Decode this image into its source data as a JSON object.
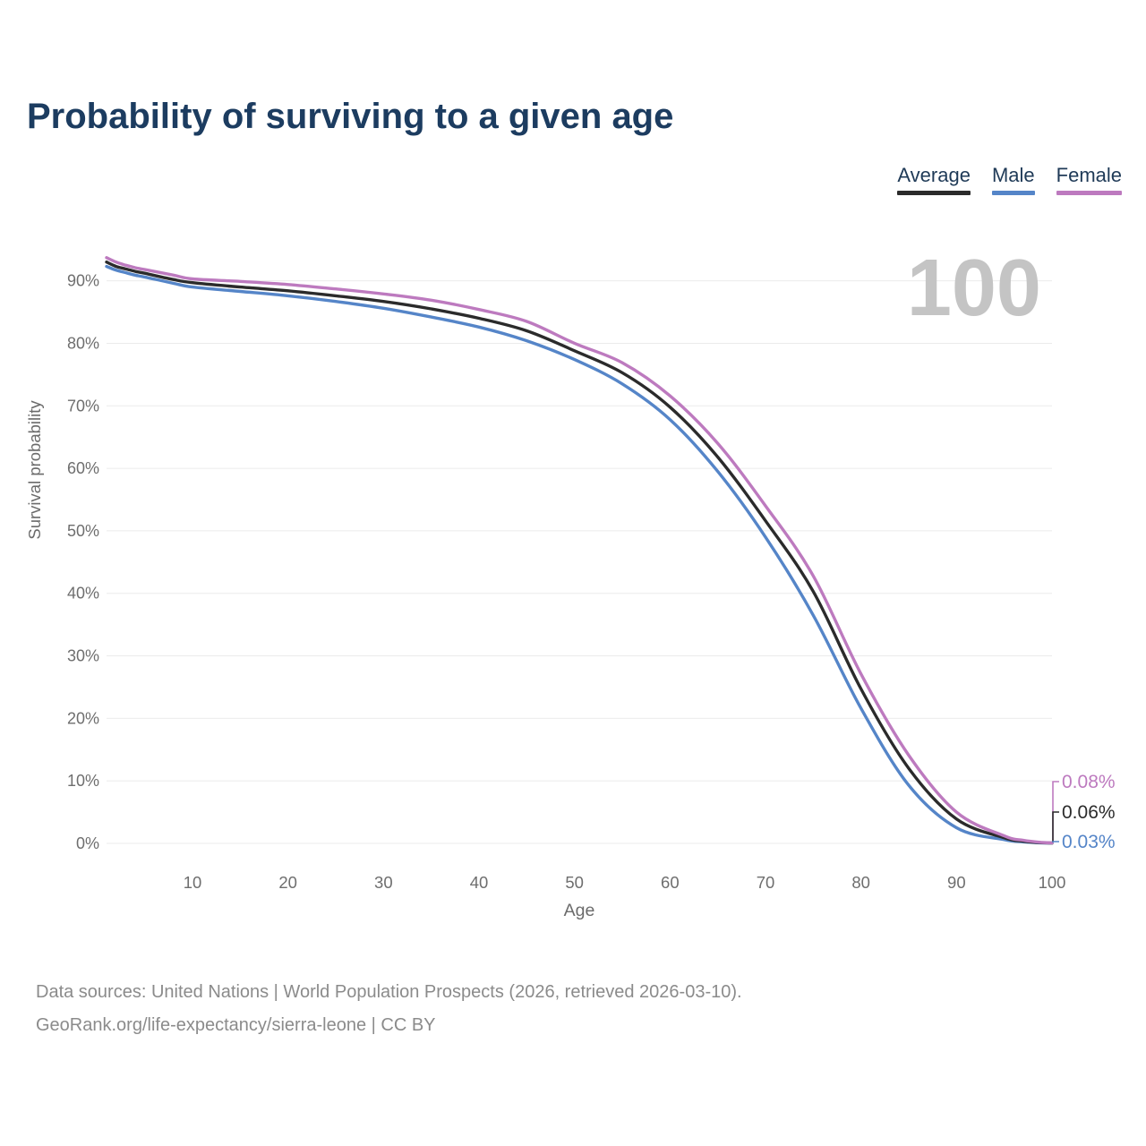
{
  "title": "Probability of surviving to a given age",
  "watermark": "100",
  "legend": {
    "items": [
      {
        "id": "average",
        "label": "Average",
        "color": "#2b2b2b"
      },
      {
        "id": "male",
        "label": "Male",
        "color": "#5585c8"
      },
      {
        "id": "female",
        "label": "Female",
        "color": "#bd7abf"
      }
    ]
  },
  "footer": {
    "line1": "Data sources: United Nations | World Population Prospects (2026, retrieved 2026-03-10).",
    "line2": "GeoRank.org/life-expectancy/sierra-leone | CC BY"
  },
  "chart_data": {
    "type": "line",
    "title": "Probability of surviving to a given age",
    "xlabel": "Age",
    "ylabel": "Survival probability",
    "xlim": [
      1,
      100
    ],
    "ylim": [
      0,
      95
    ],
    "x_ticks": [
      10,
      20,
      30,
      40,
      50,
      60,
      70,
      80,
      90,
      100
    ],
    "y_ticks": [
      0,
      10,
      20,
      30,
      40,
      50,
      60,
      70,
      80,
      90
    ],
    "y_tick_suffix": "%",
    "grid": "horizontal-only",
    "legend_position": "top-right",
    "hover_age_watermark": "100",
    "x": [
      1,
      2,
      3,
      4,
      5,
      8,
      10,
      15,
      20,
      25,
      30,
      35,
      40,
      45,
      50,
      55,
      60,
      65,
      70,
      75,
      80,
      85,
      90,
      95,
      97,
      99,
      100
    ],
    "series": [
      {
        "id": "average",
        "name": "Average",
        "color": "#2b2b2b",
        "end_label": "0.06%",
        "values": [
          93.0,
          92.3,
          91.9,
          91.5,
          91.2,
          90.2,
          89.7,
          89.0,
          88.4,
          87.6,
          86.7,
          85.5,
          84.0,
          82.0,
          78.8,
          75.3,
          69.8,
          61.8,
          51.6,
          40.3,
          24.7,
          12.0,
          3.9,
          0.9,
          0.35,
          0.1,
          0.06
        ]
      },
      {
        "id": "male",
        "name": "Male",
        "color": "#5585c8",
        "end_label": "0.03%",
        "values": [
          92.3,
          91.7,
          91.3,
          90.9,
          90.6,
          89.6,
          89.0,
          88.3,
          87.6,
          86.7,
          85.6,
          84.2,
          82.6,
          80.4,
          77.4,
          73.5,
          67.8,
          59.5,
          49.0,
          36.5,
          21.6,
          9.3,
          2.5,
          0.6,
          0.25,
          0.07,
          0.03
        ]
      },
      {
        "id": "female",
        "name": "Female",
        "color": "#bd7abf",
        "end_label": "0.08%",
        "values": [
          93.7,
          93.0,
          92.5,
          92.1,
          91.8,
          90.9,
          90.3,
          89.9,
          89.4,
          88.7,
          87.9,
          86.9,
          85.4,
          83.5,
          80.0,
          76.9,
          71.6,
          64.0,
          54.0,
          42.8,
          27.1,
          14.1,
          5.0,
          1.2,
          0.5,
          0.15,
          0.08
        ]
      }
    ]
  }
}
